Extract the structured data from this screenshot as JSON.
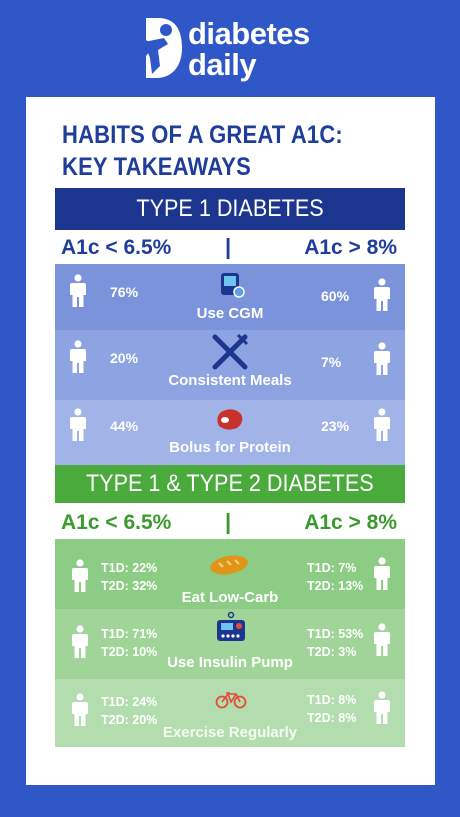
{
  "brand": {
    "line1": "diabetes",
    "line2": "daily"
  },
  "title": {
    "line1": "HABITS OF A GREAT A1C:",
    "line2": "KEY TAKEAWAYS"
  },
  "type1": {
    "heading": "TYPE 1 DIABETES",
    "range_left": "A1c < 6.5%",
    "separator": "|",
    "range_right": "A1c > 8%",
    "rows": [
      {
        "label": "Use CGM",
        "left": "76%",
        "right": "60%",
        "icon": "cgm-device-icon"
      },
      {
        "label": "Consistent Meals",
        "left": "20%",
        "right": "7%",
        "icon": "fork-knife-icon"
      },
      {
        "label": "Bolus for Protein",
        "left": "44%",
        "right": "23%",
        "icon": "steak-icon"
      }
    ]
  },
  "type12": {
    "heading": "TYPE 1 & TYPE 2 DIABETES",
    "range_left": "A1c < 6.5%",
    "separator": "|",
    "range_right": "A1c > 8%",
    "rows": [
      {
        "label": "Eat Low-Carb",
        "left_t1d": "T1D: 22%",
        "left_t2d": "T2D: 32%",
        "right_t1d": "T1D: 7%",
        "right_t2d": "T2D: 13%",
        "icon": "bread-icon"
      },
      {
        "label": "Use Insulin Pump",
        "left_t1d": "T1D: 71%",
        "left_t2d": "T2D: 10%",
        "right_t1d": "T1D: 53%",
        "right_t2d": "T2D: 3%",
        "icon": "insulin-pump-icon"
      },
      {
        "label": "Exercise Regularly",
        "left_t1d": "T1D: 24%",
        "left_t2d": "T2D: 20%",
        "right_t1d": "T1D: 8%",
        "right_t2d": "T2D: 8%",
        "icon": "bicycle-icon"
      }
    ]
  },
  "colors": {
    "background": "#2f57c8",
    "navy": "#1c3690",
    "green": "#4aab3c",
    "blue_rows": [
      "#7b93db",
      "#8ea3e1",
      "#a1b3e7"
    ],
    "green_rows": [
      "#8ccc84",
      "#a0d499",
      "#b3ddae"
    ]
  }
}
